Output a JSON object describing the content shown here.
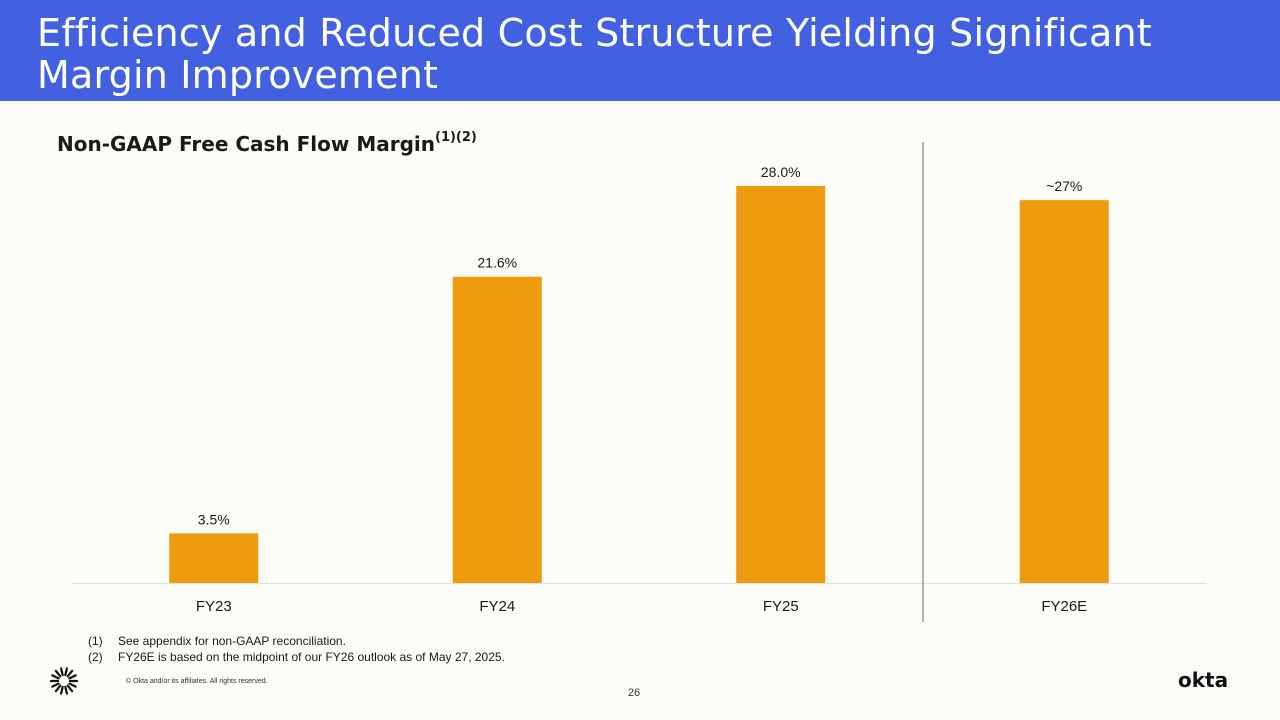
{
  "header": {
    "title": "Efficiency and Reduced Cost Structure Yielding Significant Margin Improvement"
  },
  "chart_data": {
    "type": "bar",
    "title": "Non-GAAP Free Cash Flow Margin",
    "title_superscript": "(1)(2)",
    "categories": [
      "FY23",
      "FY24",
      "FY25",
      "FY26E"
    ],
    "values": [
      3.5,
      21.6,
      28.0,
      27
    ],
    "data_labels": [
      "3.5%",
      "21.6%",
      "28.0%",
      "~27%"
    ],
    "bar_color": "#ef9b0f",
    "ylim": [
      0,
      28.0
    ],
    "grid": false,
    "legend": "none",
    "xlabel": "",
    "ylabel": "",
    "separator_before": "FY26E"
  },
  "footnotes": [
    {
      "num": "(1)",
      "text": "See appendix for non-GAAP reconciliation."
    },
    {
      "num": "(2)",
      "text": "FY26E is based on the midpoint of our FY26 outlook as of May 27, 2025."
    }
  ],
  "footer": {
    "copyright": "© Okta and/or its affiliates. All rights reserved.",
    "page_number": "26",
    "brand": "okta",
    "logo_icon": "okta-sunburst-icon"
  }
}
